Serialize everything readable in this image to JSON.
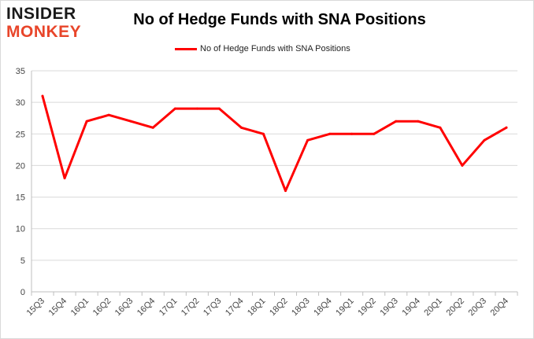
{
  "logo": {
    "line1": "INSIDER",
    "line2": "MONKEY"
  },
  "chart_data": {
    "type": "line",
    "title": "No of Hedge Funds with SNA Positions",
    "xlabel": "",
    "ylabel": "",
    "ylim": [
      0,
      35
    ],
    "yticks": [
      0,
      5,
      10,
      15,
      20,
      25,
      30,
      35
    ],
    "grid": true,
    "legend_position": "top-center",
    "categories": [
      "15Q3",
      "15Q4",
      "16Q1",
      "16Q2",
      "16Q3",
      "16Q4",
      "17Q1",
      "17Q2",
      "17Q3",
      "17Q4",
      "18Q1",
      "18Q2",
      "18Q3",
      "18Q4",
      "19Q1",
      "19Q2",
      "19Q3",
      "19Q4",
      "20Q1",
      "20Q2",
      "20Q3",
      "20Q4"
    ],
    "series": [
      {
        "name": "No of Hedge Funds with SNA Positions",
        "color": "#ff0000",
        "values": [
          31,
          18,
          27,
          28,
          27,
          26,
          29,
          29,
          29,
          26,
          25,
          16,
          24,
          25,
          25,
          25,
          27,
          27,
          26,
          20,
          24,
          26
        ]
      }
    ]
  }
}
